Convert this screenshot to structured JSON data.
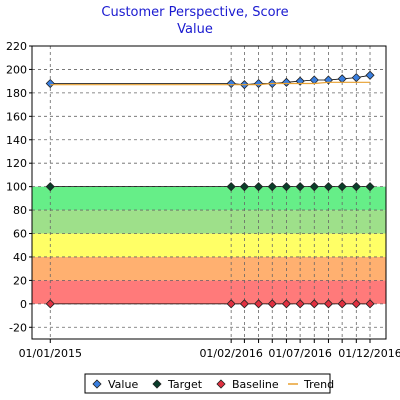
{
  "chart_data": {
    "type": "line",
    "title": "Customer Perspective, Score",
    "subtitle": "Value",
    "xlabel": "",
    "ylabel": "",
    "ylim": [
      -30,
      220
    ],
    "yticks": [
      -20,
      0,
      20,
      40,
      60,
      80,
      100,
      120,
      140,
      160,
      180,
      200,
      220
    ],
    "x_tick_labels": [
      "01/01/2015",
      "01/02/2016",
      "01/07/2016",
      "01/12/2016"
    ],
    "bands": [
      {
        "from": 0,
        "to": 20,
        "color": "#ff7a7a"
      },
      {
        "from": 20,
        "to": 40,
        "color": "#ffb070"
      },
      {
        "from": 40,
        "to": 60,
        "color": "#ffff66"
      },
      {
        "from": 60,
        "to": 80,
        "color": "#9ee08a"
      },
      {
        "from": 80,
        "to": 100,
        "color": "#66ee88"
      }
    ],
    "x": [
      "01/01/2015",
      "01/02/2016",
      "01/03/2016",
      "01/04/2016",
      "01/05/2016",
      "01/06/2016",
      "01/07/2016",
      "01/08/2016",
      "01/09/2016",
      "01/10/2016",
      "01/11/2016",
      "01/12/2016"
    ],
    "series": [
      {
        "name": "Value",
        "color": "#3a7fe0",
        "marker": "diamond",
        "values": [
          188,
          188,
          187,
          188,
          188,
          189,
          190,
          191,
          191,
          192,
          193,
          195
        ]
      },
      {
        "name": "Target",
        "color": "#0a3d2a",
        "marker": "diamond",
        "values": [
          100,
          100,
          100,
          100,
          100,
          100,
          100,
          100,
          100,
          100,
          100,
          100
        ]
      },
      {
        "name": "Baseline",
        "color": "#e03040",
        "marker": "diamond",
        "values": [
          0,
          0,
          0,
          0,
          0,
          0,
          0,
          0,
          0,
          0,
          0,
          0
        ]
      },
      {
        "name": "Trend",
        "color": "#e8a030",
        "marker": "line",
        "values": [
          187,
          187,
          187,
          187,
          188,
          188,
          188,
          188,
          189,
          189,
          189,
          189
        ]
      }
    ],
    "grid": true,
    "legend_position": "bottom"
  }
}
